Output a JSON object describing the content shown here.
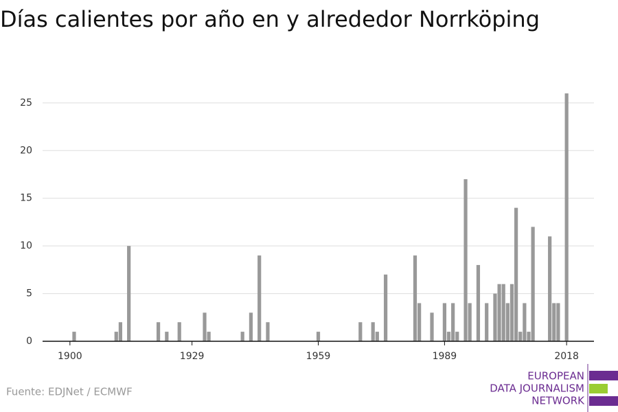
{
  "chart_data": {
    "type": "bar",
    "title": "Días calientes por año en y alrededor Norrköping",
    "x": [
      1901,
      1911,
      1912,
      1914,
      1921,
      1923,
      1926,
      1932,
      1933,
      1941,
      1943,
      1945,
      1947,
      1959,
      1969,
      1972,
      1973,
      1975,
      1982,
      1983,
      1986,
      1989,
      1990,
      1991,
      1992,
      1994,
      1995,
      1997,
      1999,
      2001,
      2002,
      2003,
      2004,
      2005,
      2006,
      2007,
      2008,
      2009,
      2010,
      2014,
      2015,
      2016,
      2018
    ],
    "values": [
      1,
      1,
      2,
      10,
      2,
      1,
      2,
      3,
      1,
      1,
      3,
      9,
      2,
      1,
      2,
      2,
      1,
      7,
      9,
      4,
      3,
      4,
      1,
      4,
      1,
      17,
      4,
      8,
      4,
      5,
      6,
      6,
      4,
      6,
      14,
      1,
      4,
      1,
      12,
      11,
      4,
      4,
      26
    ],
    "color": "#999999",
    "xlim": [
      1893.5,
      2024.5
    ],
    "xticks": [
      1900,
      1929,
      1959,
      1989,
      2018
    ],
    "ylim": [
      0,
      26
    ],
    "yticks": [
      0,
      5,
      10,
      15,
      20,
      25
    ],
    "grid": true,
    "source": "Fuente: EDJNet / ECMWF",
    "logo": [
      "EUROPEAN",
      "DATA JOURNALISM",
      "NETWORK"
    ]
  }
}
